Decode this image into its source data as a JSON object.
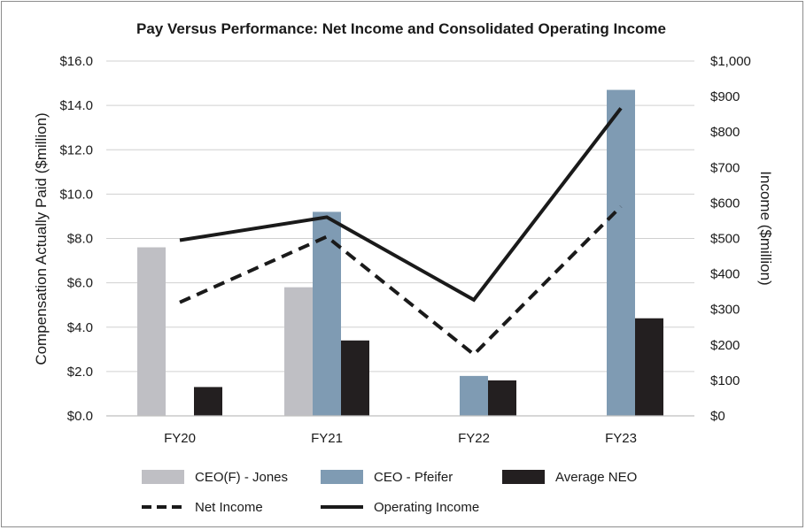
{
  "chart_data": {
    "type": "bar",
    "title": "Pay Versus Performance: Net Income and Consolidated Operating Income",
    "categories": [
      "FY20",
      "FY21",
      "FY22",
      "FY23"
    ],
    "ylabel_left": "Compensation Actually Paid ($million)",
    "ylabel_right": "Income  ($million)",
    "ylim_left": [
      0,
      16
    ],
    "ylim_right": [
      0,
      1000
    ],
    "left_ticks": [
      "$0.0",
      "$2.0",
      "$4.0",
      "$6.0",
      "$8.0",
      "$10.0",
      "$12.0",
      "$14.0",
      "$16.0"
    ],
    "right_ticks": [
      "$0",
      "$100",
      "$200",
      "$300",
      "$400",
      "$500",
      "$600",
      "$700",
      "$800",
      "$900",
      "$1,000"
    ],
    "bar_series": [
      {
        "name": "CEO(F) - Jones",
        "color": "#bfbfc4",
        "values": [
          7.6,
          5.8,
          null,
          null
        ]
      },
      {
        "name": "CEO - Pfeifer",
        "color": "#7f9bb3",
        "values": [
          null,
          9.2,
          1.8,
          14.7
        ]
      },
      {
        "name": "Average NEO",
        "color": "#231f20",
        "values": [
          1.3,
          3.4,
          1.6,
          4.4
        ]
      }
    ],
    "line_series": [
      {
        "name": "Net Income",
        "color": "#1a1a1a",
        "dash": "dashed",
        "axis": "right",
        "values": [
          320,
          505,
          173,
          590
        ]
      },
      {
        "name": "Operating Income",
        "color": "#1a1a1a",
        "dash": "solid",
        "axis": "right",
        "values": [
          495,
          560,
          327,
          867
        ]
      }
    ],
    "legend_position": "bottom",
    "grid": true
  }
}
